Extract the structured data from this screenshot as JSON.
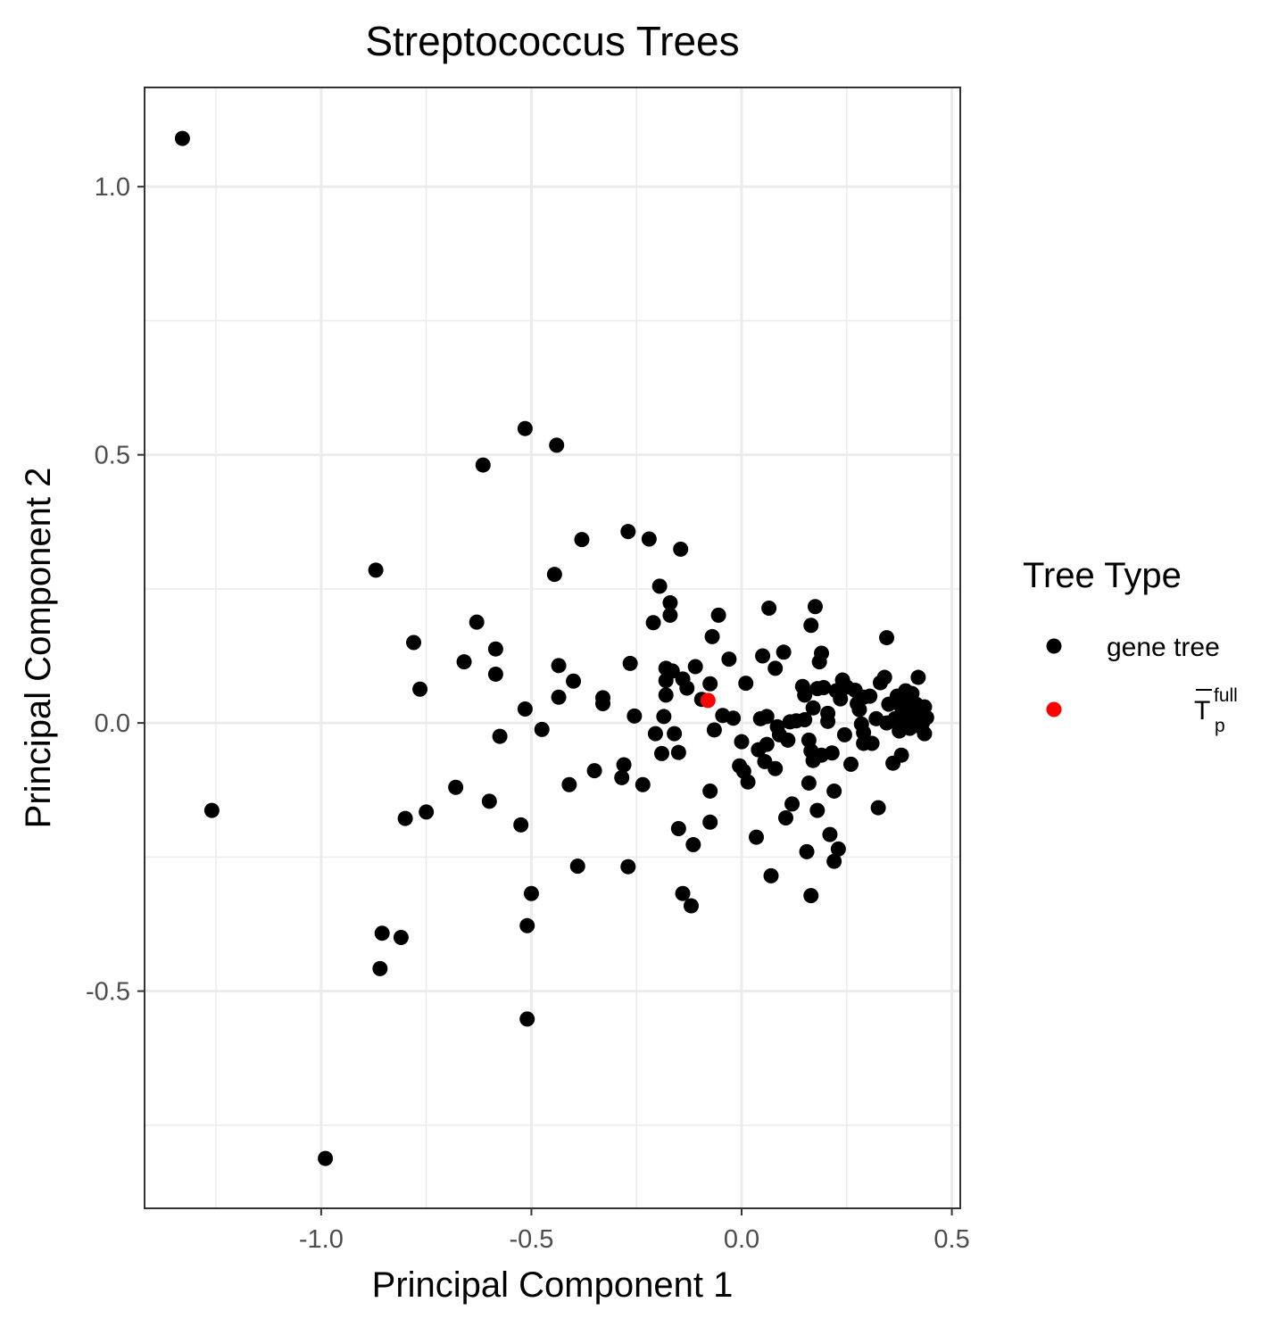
{
  "chart_data": {
    "type": "scatter",
    "title": "Streptococcus Trees",
    "xlabel": "Principal Component 1",
    "ylabel": "Principal Component 2",
    "xlim": [
      -1.42,
      0.52
    ],
    "ylim": [
      -0.905,
      1.185
    ],
    "x_ticks": [
      -1.0,
      -0.5,
      0.0,
      0.5
    ],
    "x_tick_labels": [
      "-1.0",
      "-0.5",
      "0.0",
      "0.5"
    ],
    "y_ticks": [
      -0.5,
      0.0,
      0.5,
      1.0
    ],
    "y_tick_labels": [
      "-0.5",
      "0.0",
      "0.5",
      "1.0"
    ],
    "grid": true,
    "legend": {
      "title": "Tree Type",
      "position": "right",
      "entries": [
        {
          "label": "gene tree",
          "color": "#000000"
        },
        {
          "label": "T",
          "superscript": "full",
          "subscript": "p",
          "overline": true,
          "color": "#ff0000"
        }
      ]
    },
    "series": [
      {
        "name": "gene tree",
        "color": "#000000",
        "points": [
          [
            -1.33,
            1.09
          ],
          [
            -1.26,
            -0.163
          ],
          [
            -0.99,
            -0.812
          ],
          [
            -0.87,
            0.285
          ],
          [
            -0.855,
            -0.392
          ],
          [
            -0.86,
            -0.458
          ],
          [
            -0.81,
            -0.4
          ],
          [
            -0.8,
            -0.178
          ],
          [
            -0.78,
            0.15
          ],
          [
            -0.765,
            0.063
          ],
          [
            -0.75,
            -0.166
          ],
          [
            -0.68,
            -0.12
          ],
          [
            -0.66,
            0.114
          ],
          [
            -0.63,
            0.188
          ],
          [
            -0.615,
            0.481
          ],
          [
            -0.6,
            -0.146
          ],
          [
            -0.585,
            0.138
          ],
          [
            -0.585,
            0.091
          ],
          [
            -0.575,
            -0.025
          ],
          [
            -0.525,
            -0.19
          ],
          [
            -0.515,
            0.549
          ],
          [
            -0.515,
            0.026
          ],
          [
            -0.51,
            -0.378
          ],
          [
            -0.51,
            -0.552
          ],
          [
            -0.5,
            -0.318
          ],
          [
            -0.475,
            -0.012
          ],
          [
            -0.445,
            0.277
          ],
          [
            -0.44,
            0.518
          ],
          [
            -0.435,
            0.107
          ],
          [
            -0.435,
            0.048
          ],
          [
            -0.4,
            0.078
          ],
          [
            -0.39,
            -0.267
          ],
          [
            -0.38,
            0.342
          ],
          [
            -0.41,
            -0.115
          ],
          [
            -0.35,
            -0.089
          ],
          [
            -0.33,
            0.047
          ],
          [
            -0.33,
            0.036
          ],
          [
            -0.285,
            -0.102
          ],
          [
            -0.28,
            -0.078
          ],
          [
            -0.27,
            0.357
          ],
          [
            -0.27,
            -0.268
          ],
          [
            -0.265,
            0.111
          ],
          [
            -0.255,
            0.013
          ],
          [
            -0.235,
            -0.115
          ],
          [
            -0.22,
            0.343
          ],
          [
            -0.21,
            0.187
          ],
          [
            -0.205,
            -0.02
          ],
          [
            -0.195,
            0.255
          ],
          [
            -0.19,
            -0.057
          ],
          [
            -0.185,
            0.012
          ],
          [
            -0.18,
            0.102
          ],
          [
            -0.18,
            0.079
          ],
          [
            -0.18,
            0.052
          ],
          [
            -0.17,
            0.224
          ],
          [
            -0.17,
            0.201
          ],
          [
            -0.165,
            0.097
          ],
          [
            -0.16,
            -0.02
          ],
          [
            -0.15,
            -0.197
          ],
          [
            -0.15,
            -0.055
          ],
          [
            -0.145,
            0.324
          ],
          [
            -0.14,
            0.082
          ],
          [
            -0.14,
            -0.318
          ],
          [
            -0.13,
            0.065
          ],
          [
            -0.12,
            -0.341
          ],
          [
            -0.115,
            -0.227
          ],
          [
            -0.11,
            0.105
          ],
          [
            -0.095,
            0.044
          ],
          [
            -0.075,
            0.073
          ],
          [
            -0.075,
            -0.127
          ],
          [
            -0.075,
            -0.185
          ],
          [
            -0.07,
            0.161
          ],
          [
            -0.065,
            -0.013
          ],
          [
            -0.055,
            0.201
          ],
          [
            -0.045,
            0.014
          ],
          [
            -0.03,
            0.119
          ],
          [
            -0.02,
            0.009
          ],
          [
            -0.005,
            -0.08
          ],
          [
            0.0,
            -0.035
          ],
          [
            0.005,
            -0.09
          ],
          [
            0.01,
            0.074
          ],
          [
            0.015,
            -0.11
          ],
          [
            0.035,
            -0.213
          ],
          [
            0.04,
            -0.05
          ],
          [
            0.045,
            0.008
          ],
          [
            0.05,
            0.125
          ],
          [
            0.055,
            -0.072
          ],
          [
            0.06,
            0.012
          ],
          [
            0.06,
            -0.04
          ],
          [
            0.065,
            0.214
          ],
          [
            0.07,
            -0.285
          ],
          [
            0.08,
            0.102
          ],
          [
            0.08,
            -0.085
          ],
          [
            0.085,
            -0.007
          ],
          [
            0.09,
            -0.022
          ],
          [
            0.1,
            0.132
          ],
          [
            0.105,
            -0.177
          ],
          [
            0.11,
            -0.032
          ],
          [
            0.115,
            0.002
          ],
          [
            0.12,
            -0.151
          ],
          [
            0.13,
            0.004
          ],
          [
            0.145,
            0.068
          ],
          [
            0.15,
            0.052
          ],
          [
            0.15,
            0.006
          ],
          [
            0.155,
            -0.24
          ],
          [
            0.16,
            -0.112
          ],
          [
            0.16,
            -0.032
          ],
          [
            0.165,
            0.182
          ],
          [
            0.165,
            -0.052
          ],
          [
            0.165,
            -0.322
          ],
          [
            0.17,
            -0.07
          ],
          [
            0.17,
            0.028
          ],
          [
            0.175,
            0.217
          ],
          [
            0.18,
            -0.163
          ],
          [
            0.18,
            0.064
          ],
          [
            0.185,
            0.114
          ],
          [
            0.19,
            0.13
          ],
          [
            0.19,
            -0.06
          ],
          [
            0.195,
            0.066
          ],
          [
            0.205,
            0.018
          ],
          [
            0.205,
            0.003
          ],
          [
            0.21,
            -0.208
          ],
          [
            0.215,
            -0.056
          ],
          [
            0.22,
            -0.258
          ],
          [
            0.22,
            -0.127
          ],
          [
            0.225,
            0.06
          ],
          [
            0.23,
            -0.235
          ],
          [
            0.235,
            0.045
          ],
          [
            0.24,
            0.08
          ],
          [
            0.245,
            -0.022
          ],
          [
            0.25,
            0.067
          ],
          [
            0.26,
            -0.077
          ],
          [
            0.27,
            0.061
          ],
          [
            0.275,
            0.036
          ],
          [
            0.28,
            0.025
          ],
          [
            0.285,
            -0.002
          ],
          [
            0.29,
            -0.018
          ],
          [
            0.29,
            -0.038
          ],
          [
            0.29,
            0.048
          ],
          [
            0.305,
            0.05
          ],
          [
            0.31,
            -0.038
          ],
          [
            0.32,
            0.008
          ],
          [
            0.325,
            -0.158
          ],
          [
            0.33,
            0.075
          ],
          [
            0.34,
            0.085
          ],
          [
            0.345,
            0.0
          ],
          [
            0.345,
            0.159
          ],
          [
            0.35,
            0.035
          ],
          [
            0.36,
            -0.075
          ],
          [
            0.365,
            0.008
          ],
          [
            0.37,
            0.05
          ],
          [
            0.375,
            -0.015
          ],
          [
            0.38,
            0.03
          ],
          [
            0.38,
            -0.06
          ],
          [
            0.385,
            0.018
          ],
          [
            0.39,
            0.06
          ],
          [
            0.39,
            0.0
          ],
          [
            0.395,
            0.04
          ],
          [
            0.4,
            -0.01
          ],
          [
            0.4,
            0.025
          ],
          [
            0.405,
            0.055
          ],
          [
            0.41,
            0.01
          ],
          [
            0.415,
            0.035
          ],
          [
            0.42,
            -0.005
          ],
          [
            0.42,
            0.085
          ],
          [
            0.425,
            0.02
          ],
          [
            0.43,
            0.0
          ],
          [
            0.435,
            0.03
          ],
          [
            0.435,
            -0.02
          ],
          [
            0.44,
            0.01
          ]
        ]
      },
      {
        "name": "T_p^full",
        "color": "#ff0000",
        "points": [
          [
            -0.08,
            0.042
          ]
        ]
      }
    ]
  }
}
